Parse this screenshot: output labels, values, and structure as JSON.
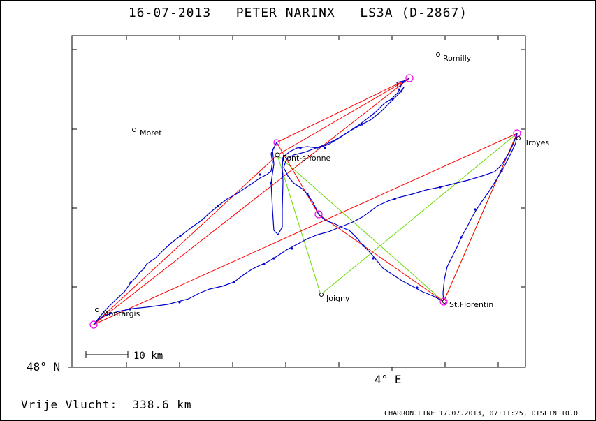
{
  "header": {
    "title": "16-07-2013   PETER NARINX   LS3A (D-2867)"
  },
  "axes": {
    "lat_label": "48° N",
    "lon_label": "4° E"
  },
  "scale": {
    "label": "10 km"
  },
  "towns": [
    {
      "name": "Romilly"
    },
    {
      "name": "Moret"
    },
    {
      "name": "Pont-s-Yonne"
    },
    {
      "name": "Troyes"
    },
    {
      "name": "Joigny"
    },
    {
      "name": "St.Florentin"
    },
    {
      "name": "Montargis"
    }
  ],
  "distance": {
    "label": "Vrije Vlucht:",
    "value": "338.6 km"
  },
  "footer": {
    "credit": "CHARRON.LINE 17.07.2013, 07:11:25, DISLIN 10.0"
  },
  "colors": {
    "track": "#0000cc",
    "task": "#ff0000",
    "alt": "#66dd00",
    "turnpoint": "#ee00ee"
  }
}
